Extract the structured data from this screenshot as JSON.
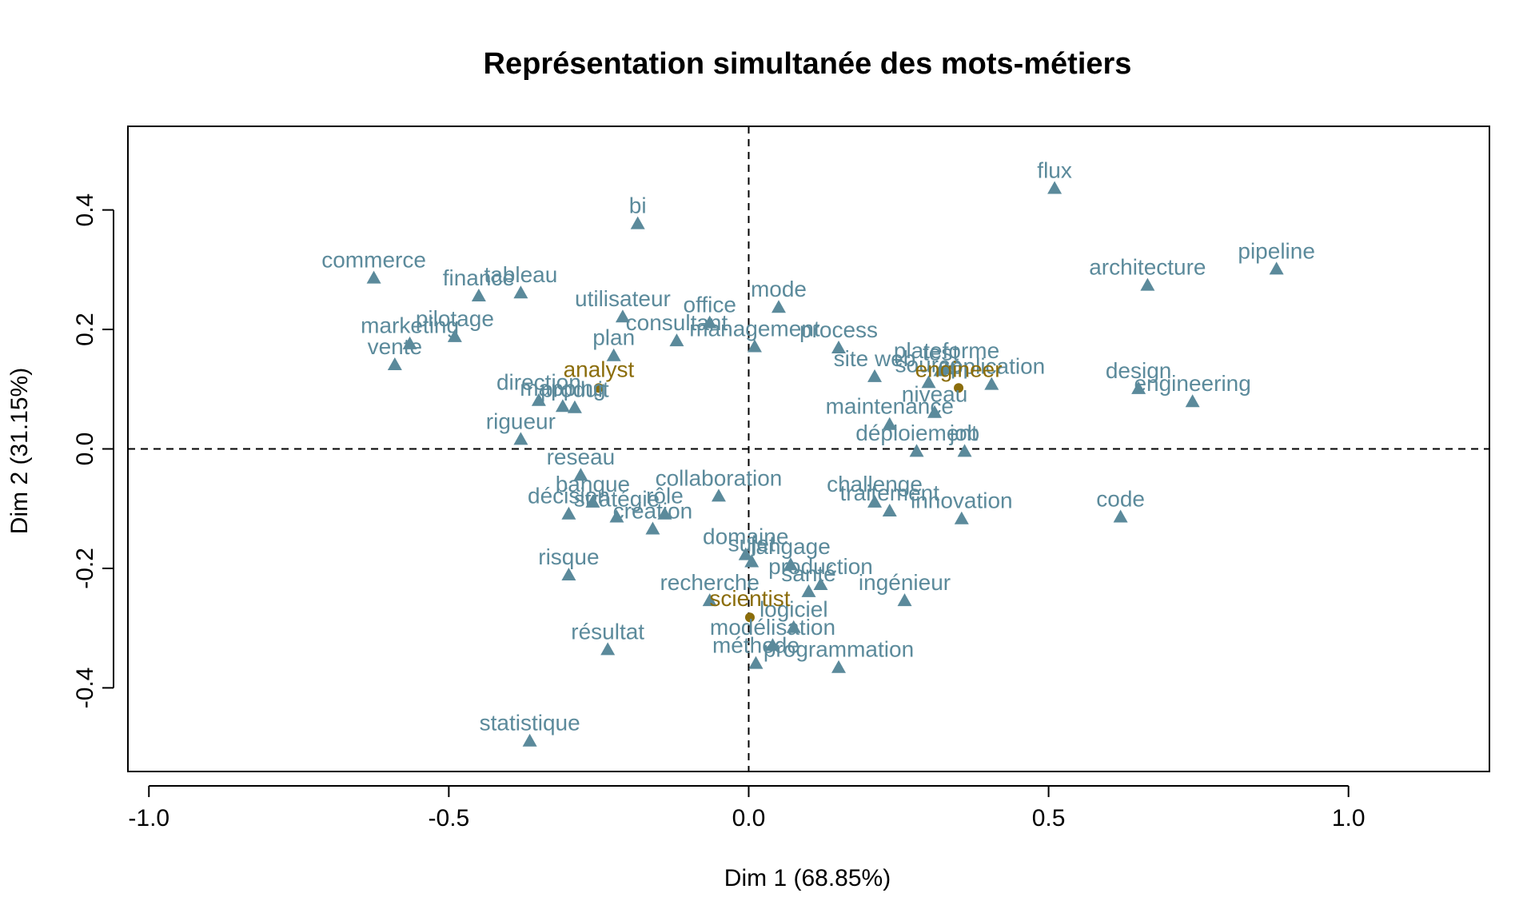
{
  "chart_data": {
    "type": "scatter",
    "title": "Représentation simultanée des mots-métiers",
    "xlabel": "Dim 1 (68.85%)",
    "ylabel": "Dim 2 (31.15%)",
    "xlim": [
      -1.035,
      1.235
    ],
    "ylim": [
      -0.54,
      0.54
    ],
    "x_ticks": [
      -1.0,
      -0.5,
      0.0,
      0.5,
      1.0
    ],
    "x_tick_labels": [
      "-1.0",
      "-0.5",
      "0.0",
      "0.5",
      "1.0"
    ],
    "y_ticks": [
      -0.4,
      -0.2,
      0.0,
      0.2,
      0.4
    ],
    "y_tick_labels": [
      "-0.4",
      "-0.2",
      "0.0",
      "0.2",
      "0.4"
    ],
    "reference_lines": {
      "x": 0,
      "y": 0,
      "style": "dashed"
    },
    "colors": {
      "words": "#5b8a9b",
      "jobs": "#8b6d0b",
      "axes": "#000000"
    },
    "series": [
      {
        "marker": "triangle",
        "color": "#5b8a9b",
        "points": [
          {
            "label": "flux",
            "x": 0.51,
            "y": 0.435
          },
          {
            "label": "pipeline",
            "x": 0.88,
            "y": 0.3
          },
          {
            "label": "architecture",
            "x": 0.665,
            "y": 0.273
          },
          {
            "label": "design",
            "x": 0.65,
            "y": 0.1
          },
          {
            "label": "engineering",
            "x": 0.74,
            "y": 0.078
          },
          {
            "label": "code",
            "x": 0.62,
            "y": -0.115
          },
          {
            "label": "commerce",
            "x": -0.625,
            "y": 0.285
          },
          {
            "label": "finance",
            "x": -0.45,
            "y": 0.255
          },
          {
            "label": "tableau",
            "x": -0.38,
            "y": 0.26
          },
          {
            "label": "pilotage",
            "x": -0.49,
            "y": 0.187
          },
          {
            "label": "marketing",
            "x": -0.565,
            "y": 0.175
          },
          {
            "label": "vente",
            "x": -0.59,
            "y": 0.14
          },
          {
            "label": "bi",
            "x": -0.185,
            "y": 0.376
          },
          {
            "label": "utilisateur",
            "x": -0.21,
            "y": 0.22
          },
          {
            "label": "plan",
            "x": -0.225,
            "y": 0.155
          },
          {
            "label": "office",
            "x": -0.065,
            "y": 0.21
          },
          {
            "label": "mode",
            "x": 0.05,
            "y": 0.236
          },
          {
            "label": "consultant",
            "x": -0.12,
            "y": 0.18
          },
          {
            "label": "management",
            "x": 0.01,
            "y": 0.17
          },
          {
            "label": "process",
            "x": 0.15,
            "y": 0.168
          },
          {
            "label": "plateforme",
            "x": 0.33,
            "y": 0.133
          },
          {
            "label": "test",
            "x": 0.32,
            "y": 0.13
          },
          {
            "label": "application",
            "x": 0.405,
            "y": 0.107
          },
          {
            "label": "site web",
            "x": 0.21,
            "y": 0.12
          },
          {
            "label": "source",
            "x": 0.3,
            "y": 0.11
          },
          {
            "label": "direction",
            "x": -0.35,
            "y": 0.08
          },
          {
            "label": "mapping",
            "x": -0.31,
            "y": 0.07
          },
          {
            "label": "produit",
            "x": -0.29,
            "y": 0.068
          },
          {
            "label": "rigueur",
            "x": -0.38,
            "y": 0.015
          },
          {
            "label": "reseau",
            "x": -0.28,
            "y": -0.045
          },
          {
            "label": "banque",
            "x": -0.26,
            "y": -0.09
          },
          {
            "label": "décision",
            "x": -0.3,
            "y": -0.11
          },
          {
            "label": "stratégie",
            "x": -0.22,
            "y": -0.115
          },
          {
            "label": "création",
            "x": -0.16,
            "y": -0.135
          },
          {
            "label": "rôle",
            "x": -0.14,
            "y": -0.11
          },
          {
            "label": "collaboration",
            "x": -0.05,
            "y": -0.08
          },
          {
            "label": "risque",
            "x": -0.3,
            "y": -0.212
          },
          {
            "label": "domaine",
            "x": -0.005,
            "y": -0.178
          },
          {
            "label": "sujet",
            "x": 0.005,
            "y": -0.19
          },
          {
            "label": "langage",
            "x": 0.07,
            "y": -0.195
          },
          {
            "label": "production",
            "x": 0.12,
            "y": -0.228
          },
          {
            "label": "santé",
            "x": 0.1,
            "y": -0.24
          },
          {
            "label": "recherche",
            "x": -0.065,
            "y": -0.255
          },
          {
            "label": "ingénieur",
            "x": 0.26,
            "y": -0.255
          },
          {
            "label": "logiciel",
            "x": 0.075,
            "y": -0.3
          },
          {
            "label": "modélisation",
            "x": 0.04,
            "y": -0.33
          },
          {
            "label": "méthode",
            "x": 0.012,
            "y": -0.36
          },
          {
            "label": "programmation",
            "x": 0.15,
            "y": -0.367
          },
          {
            "label": "résultat",
            "x": -0.235,
            "y": -0.337
          },
          {
            "label": "statistique",
            "x": -0.365,
            "y": -0.49
          },
          {
            "label": "maintenance",
            "x": 0.235,
            "y": 0.04
          },
          {
            "label": "job",
            "x": 0.36,
            "y": -0.005
          },
          {
            "label": "déploiement",
            "x": 0.28,
            "y": -0.005
          },
          {
            "label": "innovation",
            "x": 0.355,
            "y": -0.118
          },
          {
            "label": "traitement",
            "x": 0.235,
            "y": -0.105
          },
          {
            "label": "challenge",
            "x": 0.21,
            "y": -0.09
          },
          {
            "label": "niveau",
            "x": 0.31,
            "y": 0.06
          }
        ]
      },
      {
        "marker": "dot",
        "color": "#8b6d0b",
        "points": [
          {
            "label": "analyst",
            "x": -0.25,
            "y": 0.102
          },
          {
            "label": "engineer",
            "x": 0.35,
            "y": 0.102
          },
          {
            "label": "scientist",
            "x": 0.002,
            "y": -0.282
          }
        ]
      }
    ]
  }
}
